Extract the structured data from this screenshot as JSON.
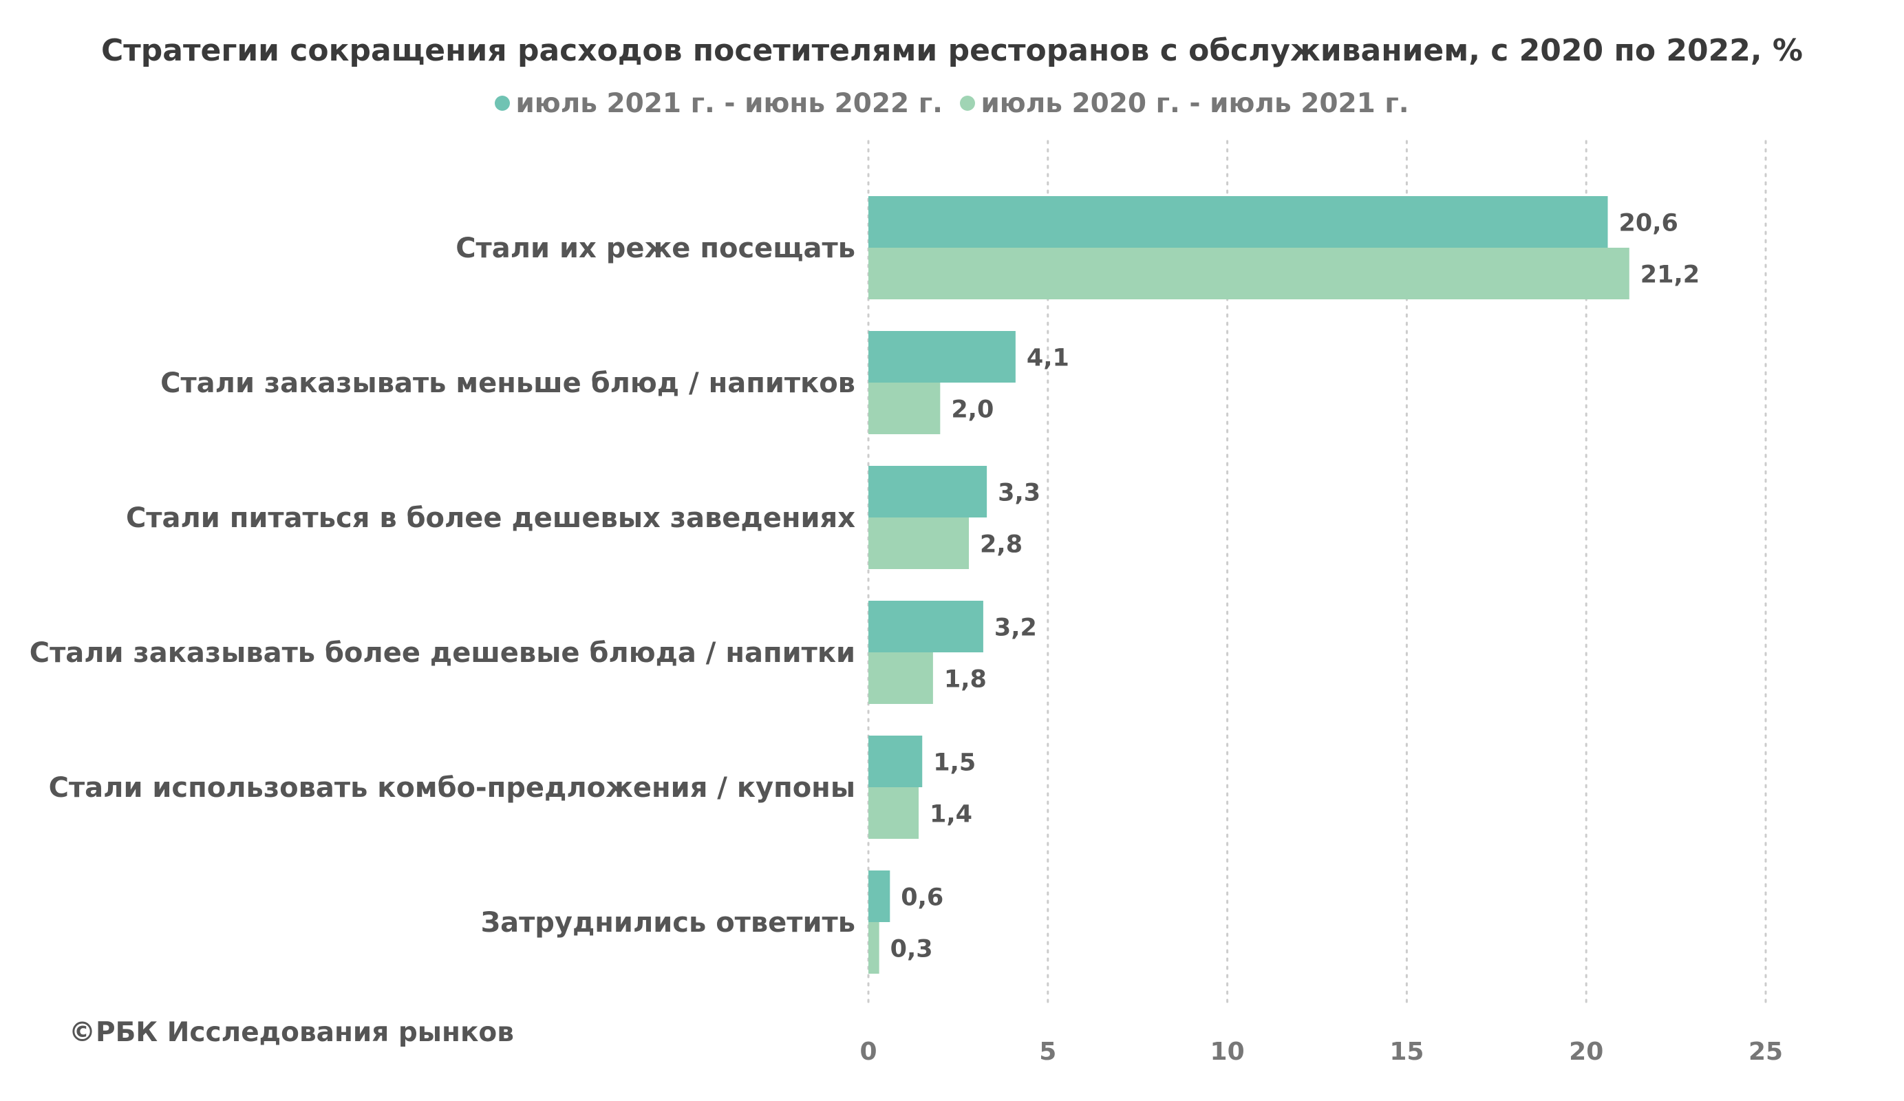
{
  "chart_data": {
    "type": "bar",
    "orientation": "horizontal",
    "title": "Стратегии сокращения расходов посетителями ресторанов с обслуживанием, с 2020 по 2022, %",
    "xlabel": "",
    "ylabel": "",
    "categories": [
      "Стали их реже посещать",
      "Стали заказывать меньше блюд / напитков",
      "Стали питаться в более дешевых заведениях",
      "Стали заказывать более дешевые блюда / напитки",
      "Стали использовать комбо-предложения / купоны",
      "Затруднились ответить"
    ],
    "series": [
      {
        "name": "июль 2021 г. - июнь 2022 г.",
        "color": "#70C3B3",
        "values": [
          20.6,
          4.1,
          3.3,
          3.2,
          1.5,
          0.6
        ],
        "labels": [
          "20,6",
          "4,1",
          "3,3",
          "3,2",
          "1,5",
          "0,6"
        ]
      },
      {
        "name": "июль 2020 г. - июль 2021 г.",
        "color": "#A0D4B4",
        "values": [
          21.2,
          2.0,
          2.8,
          1.8,
          1.4,
          0.3
        ],
        "labels": [
          "21,2",
          "2,0",
          "2,8",
          "1,8",
          "1,4",
          "0,3"
        ]
      }
    ],
    "xlim": [
      0,
      25
    ],
    "xticks": [
      0,
      5,
      10,
      15,
      20,
      25
    ],
    "xtick_labels": [
      "0",
      "5",
      "10",
      "15",
      "20",
      "25"
    ],
    "grid": "vertical dotted",
    "legend_position": "top-center"
  },
  "footer": {
    "source": "©РБК Исследования рынков"
  },
  "colors": {
    "axis_text": "#777777",
    "category_text": "#555555",
    "value_text": "#555555",
    "grid": "#cccccc"
  }
}
